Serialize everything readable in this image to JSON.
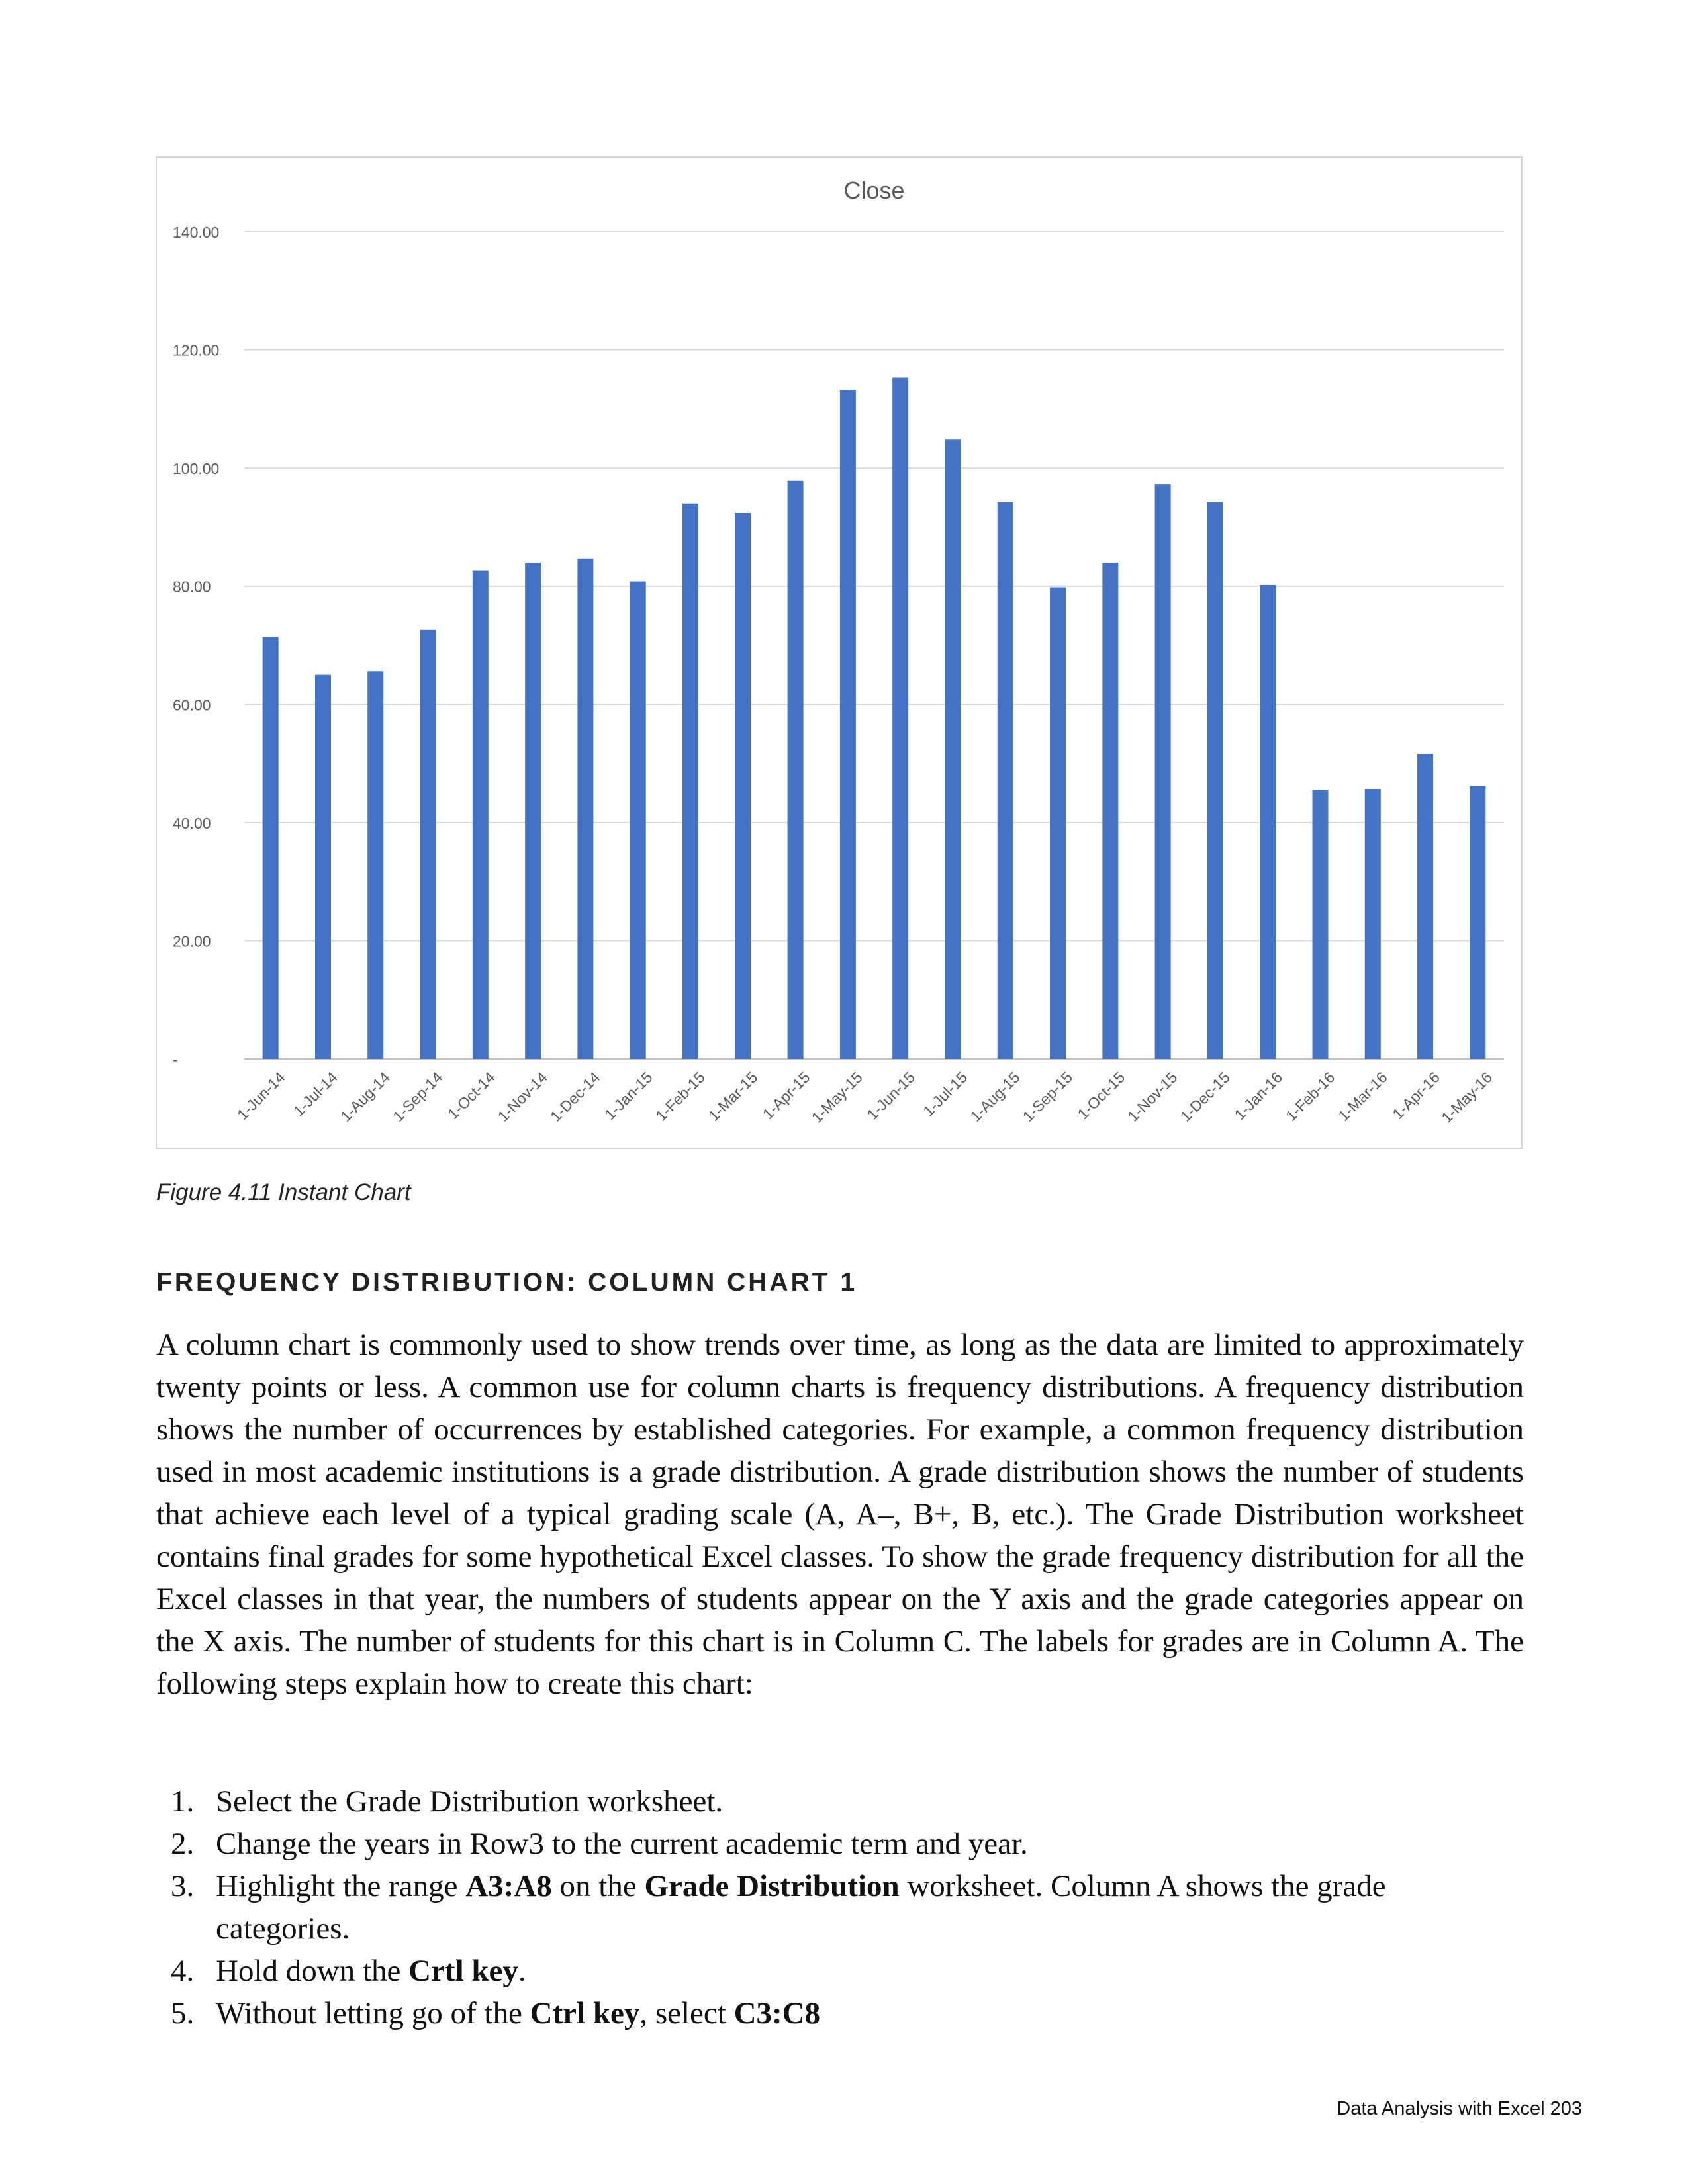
{
  "chart_data": {
    "type": "bar",
    "title": "Close",
    "categories": [
      "1-Jun-14",
      "1-Jul-14",
      "1-Aug-14",
      "1-Sep-14",
      "1-Oct-14",
      "1-Nov-14",
      "1-Dec-14",
      "1-Jan-15",
      "1-Feb-15",
      "1-Mar-15",
      "1-Apr-15",
      "1-May-15",
      "1-Jun-15",
      "1-Jul-15",
      "1-Aug-15",
      "1-Sep-15",
      "1-Oct-15",
      "1-Nov-15",
      "1-Dec-15",
      "1-Jan-16",
      "1-Feb-16",
      "1-Mar-16",
      "1-Apr-16",
      "1-May-16"
    ],
    "values": [
      71.4,
      65.0,
      65.6,
      72.6,
      82.6,
      84.0,
      84.7,
      80.8,
      94.0,
      92.4,
      97.8,
      113.2,
      115.3,
      104.8,
      94.2,
      79.8,
      84.0,
      97.2,
      94.2,
      80.2,
      45.5,
      45.7,
      51.6,
      46.2
    ],
    "ylim": [
      0,
      140
    ],
    "yticks": [
      "-",
      "20.00",
      "40.00",
      "60.00",
      "80.00",
      "100.00",
      "120.00",
      "140.00"
    ],
    "grid": true,
    "bar_color": "#4472C4"
  },
  "caption": "Figure 4.11 Instant Chart",
  "section_heading": "FREQUENCY DISTRIBUTION: COLUMN CHART 1",
  "paragraph": "A column chart is commonly used to show trends over time, as long as the data are limited to approximately twenty points or less. A common use for column charts is frequency distributions. A frequency distribution shows the number of occurrences by established categories. For example, a common frequency distribution used in most academic institutions is a grade distribution. A grade distribution shows the number of students that achieve each level of a typical grading scale (A, A–, B+, B, etc.). The Grade Distribution worksheet contains final grades for some hypothetical Excel classes. To show the grade frequency distribution for all the Excel classes in that year, the numbers of students appear on the Y axis and the grade categories appear on the X axis. The number of students for this chart is in Column C. The labels for grades are in Column A. The following steps explain how to create this chart:",
  "steps": [
    {
      "num": "1.",
      "parts": [
        {
          "t": "Select the Grade Distribution worksheet."
        }
      ]
    },
    {
      "num": "2.",
      "parts": [
        {
          "t": "Change the years in Row3 to the current academic term and year."
        }
      ]
    },
    {
      "num": "3.",
      "parts": [
        {
          "t": "Highlight the range "
        },
        {
          "t": "A3:A8",
          "b": true
        },
        {
          "t": " on the "
        },
        {
          "t": "Grade Distribution",
          "b": true
        },
        {
          "t": " worksheet. Column A shows the grade categories."
        }
      ]
    },
    {
      "num": "4.",
      "parts": [
        {
          "t": "Hold down the "
        },
        {
          "t": "Crtl key",
          "b": true
        },
        {
          "t": "."
        }
      ]
    },
    {
      "num": "5.",
      "parts": [
        {
          "t": "Without letting go of the "
        },
        {
          "t": "Ctrl key",
          "b": true
        },
        {
          "t": ", select "
        },
        {
          "t": "C3:C8",
          "b": true
        }
      ]
    }
  ],
  "footer": "Data Analysis with Excel 203"
}
